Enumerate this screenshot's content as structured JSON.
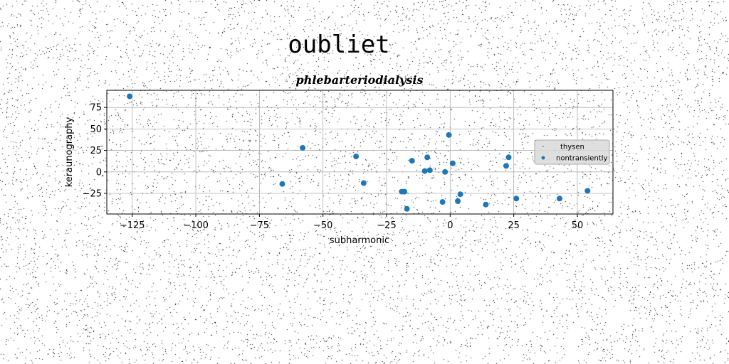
{
  "figure": {
    "title": "oubliet"
  },
  "chart_data": {
    "type": "scatter",
    "title": "phlebarteriodialysis",
    "xlabel": "subharmonic",
    "ylabel": "keraunography",
    "xlim": [
      -135,
      64
    ],
    "ylim": [
      -49,
      95
    ],
    "xticks": [
      -125,
      -100,
      -75,
      -50,
      -25,
      0,
      25,
      50
    ],
    "xtick_labels": [
      "−125",
      "−100",
      "−75",
      "−50",
      "−25",
      "0",
      "25",
      "50"
    ],
    "yticks": [
      -25,
      0,
      25,
      50,
      75
    ],
    "ytick_labels": [
      "−25",
      "0",
      "25",
      "50",
      "75"
    ],
    "grid": true,
    "legend_placement": "center-right",
    "series": [
      {
        "name": "thysen",
        "color": "#1f77b4",
        "marker_size": 1,
        "x": [],
        "y": []
      },
      {
        "name": "nontransiently",
        "color": "#1f77b4",
        "marker_size": 4,
        "x": [
          -126,
          -66,
          -58,
          -37,
          -34,
          -19,
          -18,
          -17,
          -15,
          -10,
          -9,
          -8,
          -3,
          -2,
          -0.5,
          1,
          3,
          4,
          14,
          22,
          23,
          26,
          43,
          54
        ],
        "y": [
          88,
          -14,
          28,
          18,
          -13,
          -23,
          -23,
          -43,
          13,
          1,
          17,
          2,
          -35,
          0,
          43,
          10,
          -34,
          -26,
          -38,
          7,
          17,
          -31,
          -31,
          -22
        ]
      }
    ]
  }
}
